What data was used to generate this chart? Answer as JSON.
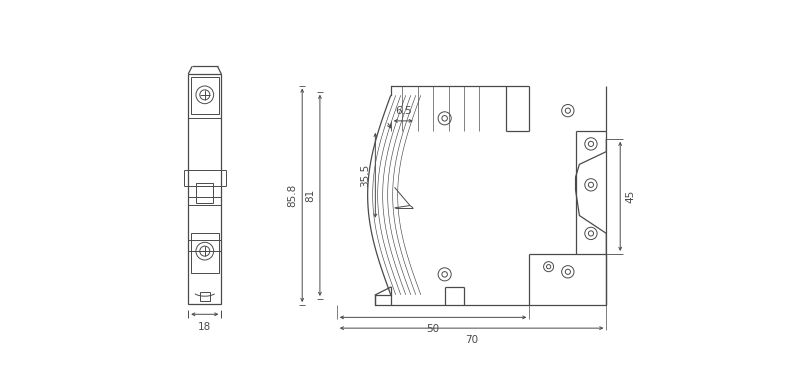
{
  "bg_color": "#ffffff",
  "line_color": "#4a4a4a",
  "lw": 0.9,
  "tlw": 0.7,
  "fs": 7.5,
  "fig_w": 8.0,
  "fig_h": 3.86,
  "dpi": 100,
  "dims": {
    "d85": "85.8",
    "d81": "81",
    "d35": "35.5",
    "d65": "6.5",
    "d50": "50",
    "d70": "70",
    "d45": "45",
    "d18": "18"
  }
}
